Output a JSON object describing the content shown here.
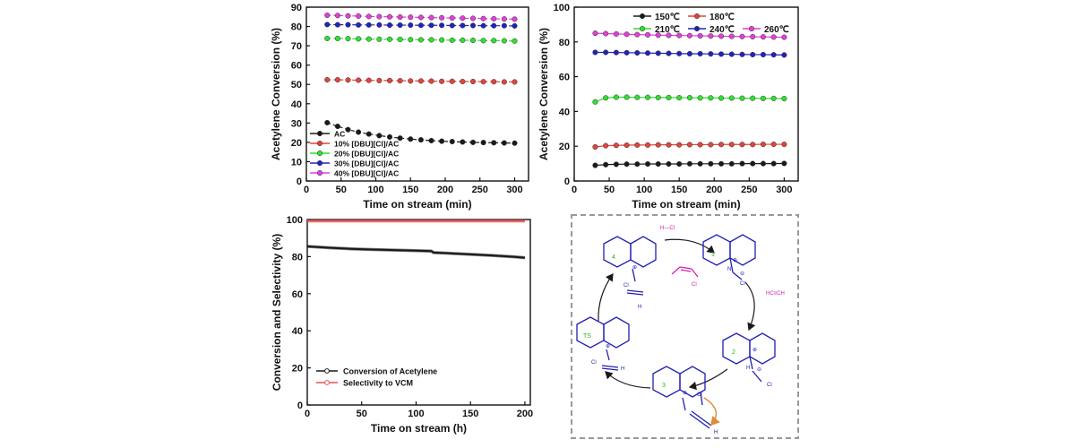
{
  "colors": {
    "black": "#1a1a1a",
    "red": "#e0453c",
    "green": "#2fe02f",
    "blue": "#2222bb",
    "magenta": "#e23fd8",
    "selectivity": "#e05555",
    "scheme_blue": "#1f1fb4",
    "scheme_magenta": "#d61fb0",
    "scheme_green": "#22b522",
    "arrow_orange": "#e08a3a"
  },
  "chart_data": [
    {
      "id": "a",
      "type": "line",
      "xlabel": "Time on stream (min)",
      "ylabel": "Acetylene Conversion (%)",
      "xlim": [
        0,
        320
      ],
      "ylim": [
        0,
        90
      ],
      "xticks": [
        0,
        50,
        100,
        150,
        200,
        250,
        300
      ],
      "yticks": [
        0,
        10,
        20,
        30,
        40,
        50,
        60,
        70,
        80,
        90
      ],
      "legend_position": "bottom-left",
      "x": [
        30,
        45,
        60,
        75,
        90,
        105,
        120,
        135,
        150,
        165,
        180,
        195,
        210,
        225,
        240,
        255,
        270,
        285,
        300
      ],
      "series": [
        {
          "name": "AC",
          "color_key": "black",
          "dashed": true,
          "values": [
            30.2,
            28.3,
            26.6,
            25.3,
            24.3,
            23.5,
            22.8,
            22.2,
            21.7,
            21.3,
            20.9,
            20.6,
            20.4,
            20.2,
            20.0,
            19.9,
            19.8,
            19.7,
            19.6
          ]
        },
        {
          "name": "10% [DBU][Cl]/AC",
          "color_key": "red",
          "dashed": true,
          "values": [
            52.4,
            52.4,
            52.3,
            52.2,
            52.1,
            52.0,
            52.0,
            51.9,
            51.8,
            51.8,
            51.7,
            51.6,
            51.6,
            51.5,
            51.5,
            51.4,
            51.4,
            51.3,
            51.3
          ]
        },
        {
          "name": "20% [DBU][Cl]/AC",
          "color_key": "green",
          "dashed": true,
          "values": [
            73.8,
            73.8,
            73.7,
            73.6,
            73.5,
            73.4,
            73.4,
            73.3,
            73.2,
            73.1,
            73.1,
            73.0,
            72.9,
            72.9,
            72.8,
            72.7,
            72.7,
            72.6,
            72.5
          ]
        },
        {
          "name": "30% [DBU][Cl]/AC",
          "color_key": "blue",
          "dashed": true,
          "values": [
            81.0,
            80.9,
            80.9,
            80.8,
            80.8,
            80.8,
            80.7,
            80.7,
            80.7,
            80.6,
            80.6,
            80.6,
            80.5,
            80.5,
            80.5,
            80.4,
            80.4,
            80.4,
            80.3
          ]
        },
        {
          "name": "40% [DBU][Cl]/AC",
          "color_key": "magenta",
          "dashed": true,
          "values": [
            85.8,
            85.7,
            85.5,
            85.4,
            85.2,
            85.1,
            85.0,
            84.9,
            84.8,
            84.7,
            84.6,
            84.5,
            84.4,
            84.3,
            84.2,
            84.1,
            84.0,
            83.9,
            83.8
          ]
        }
      ]
    },
    {
      "id": "b",
      "type": "line",
      "xlabel": "Time on stream (min)",
      "ylabel": "Acetylene Conversion (%)",
      "xlim": [
        0,
        320
      ],
      "ylim": [
        0,
        100
      ],
      "xticks": [
        0,
        50,
        100,
        150,
        200,
        250,
        300
      ],
      "yticks": [
        0,
        20,
        40,
        60,
        80,
        100
      ],
      "legend_position": "top",
      "x": [
        30,
        45,
        60,
        75,
        90,
        105,
        120,
        135,
        150,
        165,
        180,
        195,
        210,
        225,
        240,
        255,
        270,
        285,
        300
      ],
      "series": [
        {
          "name": "150℃",
          "color_key": "black",
          "dashed": false,
          "values": [
            9.0,
            9.4,
            9.6,
            9.7,
            9.7,
            9.8,
            9.8,
            9.8,
            9.8,
            9.9,
            9.9,
            9.9,
            9.9,
            9.9,
            10.0,
            10.0,
            10.0,
            10.0,
            10.1
          ]
        },
        {
          "name": "180℃",
          "color_key": "red",
          "dashed": false,
          "values": [
            19.6,
            20.3,
            20.5,
            20.6,
            20.7,
            20.7,
            20.8,
            20.8,
            20.8,
            20.9,
            20.9,
            20.9,
            21.0,
            21.0,
            21.0,
            21.0,
            21.1,
            21.1,
            21.1
          ]
        },
        {
          "name": "210℃",
          "color_key": "green",
          "dashed": false,
          "values": [
            45.5,
            47.8,
            48.2,
            48.2,
            48.1,
            48.1,
            48.0,
            48.0,
            47.9,
            47.9,
            47.8,
            47.8,
            47.7,
            47.7,
            47.6,
            47.6,
            47.5,
            47.5,
            47.4
          ]
        },
        {
          "name": "240℃",
          "color_key": "blue",
          "dashed": false,
          "values": [
            74.0,
            74.0,
            73.9,
            73.8,
            73.7,
            73.6,
            73.5,
            73.4,
            73.3,
            73.2,
            73.2,
            73.1,
            73.0,
            72.9,
            72.8,
            72.7,
            72.7,
            72.6,
            72.5
          ]
        },
        {
          "name": "260℃",
          "color_key": "magenta",
          "dashed": false,
          "values": [
            85.0,
            84.8,
            84.6,
            84.4,
            84.2,
            84.1,
            83.9,
            83.8,
            83.7,
            83.6,
            83.5,
            83.4,
            83.3,
            83.2,
            83.1,
            83.0,
            82.9,
            82.8,
            82.7
          ]
        }
      ]
    },
    {
      "id": "c",
      "type": "line",
      "xlabel": "Time on stream (h)",
      "ylabel": "Conversion and Selectivity  (%)",
      "xlim": [
        0,
        205
      ],
      "ylim": [
        0,
        100
      ],
      "xticks": [
        0,
        50,
        100,
        150,
        200
      ],
      "yticks": [
        0,
        20,
        40,
        60,
        80,
        100
      ],
      "legend_position": "bottom-left",
      "series": [
        {
          "name": "Conversion of Acetylene",
          "color_key": "black",
          "x": [
            0,
            20,
            40,
            60,
            80,
            100,
            114,
            116,
            130,
            150,
            170,
            190,
            200
          ],
          "values": [
            85.5,
            84.8,
            84.2,
            83.8,
            83.5,
            83.2,
            83.0,
            82.2,
            81.8,
            81.2,
            80.6,
            79.9,
            79.4
          ]
        },
        {
          "name": "Selectivity to VCM",
          "color_key": "selectivity",
          "x": [
            0,
            200
          ],
          "values": [
            99.2,
            99.2
          ]
        }
      ]
    }
  ],
  "scheme": {
    "step_labels": [
      "1",
      "2",
      "3",
      "TS",
      "4"
    ],
    "reactant_hcl": "H—Cl",
    "reactant_acetylene": "HC≡CH",
    "product_label": "Cl",
    "atom_n": "N",
    "atom_h": "H",
    "atom_cl": "Cl",
    "atom_c": "C",
    "charge_pos": "⊕",
    "charge_neg": "⊖"
  }
}
